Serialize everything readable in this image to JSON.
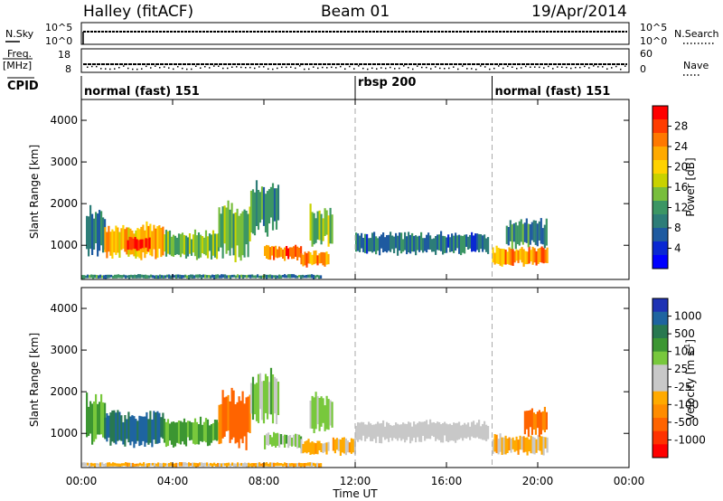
{
  "header": {
    "station": "Halley (fitACF)",
    "beam": "Beam 01",
    "date": "19/Apr/2014"
  },
  "panel_labels": {
    "nsky": "N.Sky",
    "nsearch": "N.Search",
    "freq_line1": "Freq.",
    "freq_line2": "[MHz]",
    "nave": "Nave",
    "cpid": "CPID",
    "nsky_ticks": [
      "10^5",
      "10^0"
    ],
    "nsearch_ticks": [
      "10^5",
      "10^0"
    ],
    "freq_ticks": [
      "18",
      "8"
    ],
    "nave_ticks": [
      "60",
      "0"
    ]
  },
  "cpid_segments": [
    {
      "label": "normal (fast) 151",
      "start_hour": 0
    },
    {
      "label": "rbsp 200",
      "start_hour": 12
    },
    {
      "label": "normal (fast) 151",
      "start_hour": 18
    }
  ],
  "power_colorbar": {
    "title": "Power [dB]",
    "ticks": [
      "28",
      "24",
      "20",
      "16",
      "12",
      "8",
      "4"
    ],
    "colors": [
      "#ff0000",
      "#ff3c00",
      "#ff7800",
      "#ffaa00",
      "#ffd200",
      "#c8d200",
      "#78be3c",
      "#3c9664",
      "#2d7d78",
      "#1e5aa0",
      "#0a28d2",
      "#0000ff"
    ]
  },
  "velocity_colorbar": {
    "title": "Velocity [m s",
    "superscript": "-1",
    "title_end": "]",
    "ticks": [
      "1000",
      "500",
      "100",
      "25",
      "-25",
      "-100",
      "-500",
      "-1000"
    ],
    "colors": [
      "#1e32b4",
      "#1e64a0",
      "#287850",
      "#3c9632",
      "#78c83c",
      "#c8c8c8",
      "#c8c8c8",
      "#ffaa00",
      "#ff8c00",
      "#ff6400",
      "#ff3200",
      "#ff0000"
    ]
  },
  "chart_data": [
    {
      "type": "heatmap",
      "title": "Power",
      "xlabel": "Time UT",
      "ylabel": "Slant Range [km]",
      "xlim": [
        0,
        24
      ],
      "ylim": [
        180,
        4500
      ],
      "xticklabels": [
        "00:00",
        "04:00",
        "08:00",
        "12:00",
        "16:00",
        "20:00",
        "00:00"
      ],
      "yticklabels": [
        "1000",
        "2000",
        "3000",
        "4000"
      ],
      "vlines_hours": [
        12,
        18
      ],
      "colorbar": "power_colorbar",
      "regions": [
        {
          "t0": 0.2,
          "t1": 1.0,
          "r0": 800,
          "r1": 1900,
          "level": 9
        },
        {
          "t0": 1.0,
          "t1": 3.6,
          "r0": 700,
          "r1": 1500,
          "level": 22
        },
        {
          "t0": 2.0,
          "t1": 3.0,
          "r0": 850,
          "r1": 1200,
          "level": 29
        },
        {
          "t0": 3.6,
          "t1": 6.0,
          "r0": 700,
          "r1": 1350,
          "level": 14
        },
        {
          "t0": 6.0,
          "t1": 7.4,
          "r0": 700,
          "r1": 2000,
          "level": 14
        },
        {
          "t0": 7.4,
          "t1": 8.6,
          "r0": 1300,
          "r1": 2500,
          "level": 10
        },
        {
          "t0": 8.0,
          "t1": 9.6,
          "r0": 650,
          "r1": 1000,
          "level": 26
        },
        {
          "t0": 9.6,
          "t1": 10.8,
          "r0": 500,
          "r1": 850,
          "level": 24
        },
        {
          "t0": 10.0,
          "t1": 11.0,
          "r0": 1000,
          "r1": 1900,
          "level": 16
        },
        {
          "t0": 12.0,
          "t1": 17.8,
          "r0": 800,
          "r1": 1300,
          "level": 8
        },
        {
          "t0": 18.0,
          "t1": 20.4,
          "r0": 500,
          "r1": 950,
          "level": 24
        },
        {
          "t0": 18.6,
          "t1": 20.4,
          "r0": 950,
          "r1": 1600,
          "level": 10
        },
        {
          "t0": 0.0,
          "t1": 10.5,
          "r0": 200,
          "r1": 300,
          "level": 10
        }
      ]
    },
    {
      "type": "heatmap",
      "title": "Velocity",
      "xlabel": "Time UT",
      "ylabel": "Slant Range [km]",
      "xlim": [
        0,
        24
      ],
      "ylim": [
        180,
        4500
      ],
      "xticklabels": [
        "00:00",
        "04:00",
        "08:00",
        "12:00",
        "16:00",
        "20:00",
        "00:00"
      ],
      "yticklabels": [
        "1000",
        "2000",
        "3000",
        "4000"
      ],
      "vlines_hours": [
        12,
        18
      ],
      "colorbar": "velocity_colorbar",
      "regions": [
        {
          "t0": 0.2,
          "t1": 1.0,
          "r0": 800,
          "r1": 1900,
          "level": 100
        },
        {
          "t0": 1.0,
          "t1": 3.6,
          "r0": 700,
          "r1": 1500,
          "level": 300
        },
        {
          "t0": 3.6,
          "t1": 6.0,
          "r0": 700,
          "r1": 1350,
          "level": 100
        },
        {
          "t0": 6.0,
          "t1": 7.4,
          "r0": 700,
          "r1": 2000,
          "level": -200
        },
        {
          "t0": 7.4,
          "t1": 8.6,
          "r0": 1300,
          "r1": 2500,
          "level": 60
        },
        {
          "t0": 8.0,
          "t1": 9.6,
          "r0": 650,
          "r1": 1000,
          "level": 60
        },
        {
          "t0": 9.6,
          "t1": 10.8,
          "r0": 500,
          "r1": 850,
          "level": -60
        },
        {
          "t0": 10.0,
          "t1": 11.0,
          "r0": 1000,
          "r1": 1900,
          "level": 60
        },
        {
          "t0": 11.0,
          "t1": 12.0,
          "r0": 500,
          "r1": 900,
          "level": -60
        },
        {
          "t0": 12.0,
          "t1": 17.8,
          "r0": 800,
          "r1": 1300,
          "level": 0
        },
        {
          "t0": 18.0,
          "t1": 20.4,
          "r0": 500,
          "r1": 950,
          "level": -60
        },
        {
          "t0": 19.4,
          "t1": 20.4,
          "r0": 950,
          "r1": 1600,
          "level": -200
        },
        {
          "t0": 0.0,
          "t1": 10.5,
          "r0": 200,
          "r1": 300,
          "level": -60
        }
      ]
    }
  ]
}
